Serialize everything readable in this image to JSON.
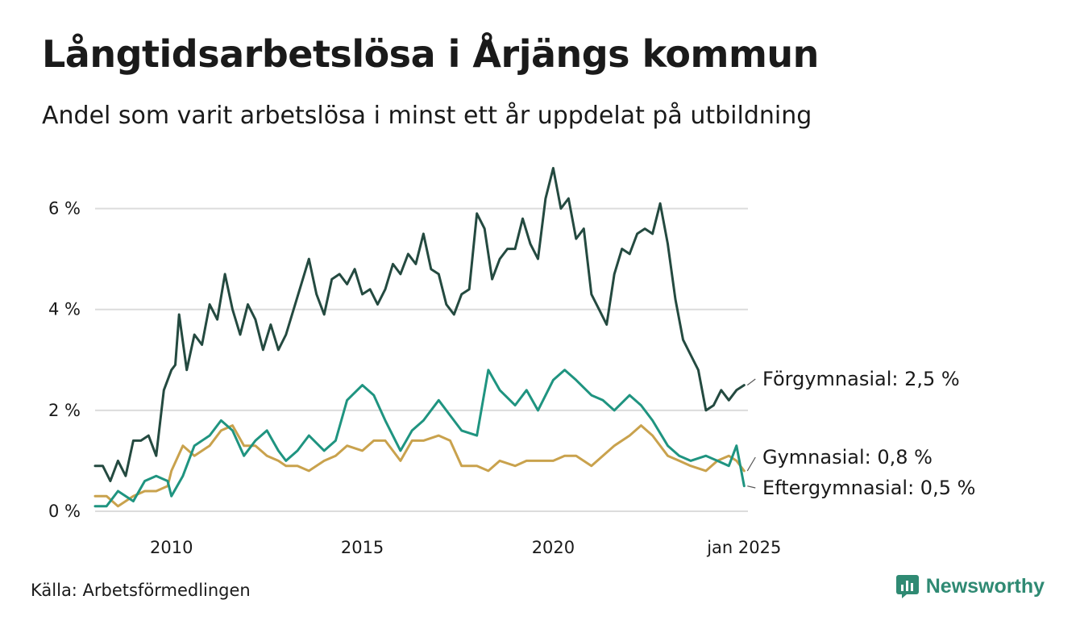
{
  "chart_data": {
    "type": "line",
    "title": "Långtidsarbetslösa i Årjängs kommun",
    "subtitle": "Andel som varit arbetslösa i minst ett år uppdelat på utbildning",
    "ylim": [
      0,
      7
    ],
    "xlim": [
      2008,
      2025.1
    ],
    "yticks": [
      0,
      2,
      4,
      6
    ],
    "ytick_labels": [
      "0 %",
      "2 %",
      "4 %",
      "6 %"
    ],
    "xticks": [
      2010,
      2015,
      2020,
      2025
    ],
    "xtick_labels": [
      "2010",
      "2015",
      "2020",
      "jan 2025"
    ],
    "grid": true,
    "series": [
      {
        "name": "Förgymnasial",
        "label": "Förgymnasial: 2,5 %",
        "color": "#244a40",
        "x": [
          2008.0,
          2008.2,
          2008.4,
          2008.6,
          2008.8,
          2009.0,
          2009.2,
          2009.4,
          2009.6,
          2009.8,
          2010.0,
          2010.1,
          2010.2,
          2010.4,
          2010.6,
          2010.8,
          2011.0,
          2011.2,
          2011.4,
          2011.6,
          2011.8,
          2012.0,
          2012.2,
          2012.4,
          2012.6,
          2012.8,
          2013.0,
          2013.2,
          2013.4,
          2013.6,
          2013.8,
          2014.0,
          2014.2,
          2014.4,
          2014.6,
          2014.8,
          2015.0,
          2015.2,
          2015.4,
          2015.6,
          2015.8,
          2016.0,
          2016.2,
          2016.4,
          2016.6,
          2016.8,
          2017.0,
          2017.2,
          2017.4,
          2017.6,
          2017.8,
          2018.0,
          2018.2,
          2018.4,
          2018.6,
          2018.8,
          2019.0,
          2019.2,
          2019.4,
          2019.6,
          2019.8,
          2020.0,
          2020.2,
          2020.4,
          2020.6,
          2020.8,
          2021.0,
          2021.2,
          2021.4,
          2021.6,
          2021.8,
          2022.0,
          2022.2,
          2022.4,
          2022.6,
          2022.8,
          2023.0,
          2023.2,
          2023.4,
          2023.6,
          2023.8,
          2024.0,
          2024.2,
          2024.4,
          2024.6,
          2024.8,
          2025.0
        ],
        "y": [
          0.9,
          0.9,
          0.6,
          1.0,
          0.7,
          1.4,
          1.4,
          1.5,
          1.1,
          2.4,
          2.8,
          2.9,
          3.9,
          2.8,
          3.5,
          3.3,
          4.1,
          3.8,
          4.7,
          4.0,
          3.5,
          4.1,
          3.8,
          3.2,
          3.7,
          3.2,
          3.5,
          4.0,
          4.5,
          5.0,
          4.3,
          3.9,
          4.6,
          4.7,
          4.5,
          4.8,
          4.3,
          4.4,
          4.1,
          4.4,
          4.9,
          4.7,
          5.1,
          4.9,
          5.5,
          4.8,
          4.7,
          4.1,
          3.9,
          4.3,
          4.4,
          5.9,
          5.6,
          4.6,
          5.0,
          5.2,
          5.2,
          5.8,
          5.3,
          5.0,
          6.2,
          6.8,
          6.0,
          6.2,
          5.4,
          5.6,
          4.3,
          4.0,
          3.7,
          4.7,
          5.2,
          5.1,
          5.5,
          5.6,
          5.5,
          6.1,
          5.3,
          4.2,
          3.4,
          3.1,
          2.8,
          2.0,
          2.1,
          2.4,
          2.2,
          2.4,
          2.5
        ]
      },
      {
        "name": "Gymnasial",
        "label": "Gymnasial: 0,8 %",
        "color": "#c9a24d",
        "x": [
          2008.0,
          2008.3,
          2008.6,
          2009.0,
          2009.3,
          2009.6,
          2009.9,
          2010.0,
          2010.3,
          2010.6,
          2011.0,
          2011.3,
          2011.6,
          2011.9,
          2012.2,
          2012.5,
          2012.8,
          2013.0,
          2013.3,
          2013.6,
          2014.0,
          2014.3,
          2014.6,
          2015.0,
          2015.3,
          2015.6,
          2016.0,
          2016.3,
          2016.6,
          2017.0,
          2017.3,
          2017.6,
          2018.0,
          2018.3,
          2018.6,
          2019.0,
          2019.3,
          2019.6,
          2020.0,
          2020.3,
          2020.6,
          2021.0,
          2021.3,
          2021.6,
          2022.0,
          2022.3,
          2022.6,
          2023.0,
          2023.3,
          2023.6,
          2024.0,
          2024.3,
          2024.6,
          2024.8,
          2025.0
        ],
        "y": [
          0.3,
          0.3,
          0.1,
          0.3,
          0.4,
          0.4,
          0.5,
          0.8,
          1.3,
          1.1,
          1.3,
          1.6,
          1.7,
          1.3,
          1.3,
          1.1,
          1.0,
          0.9,
          0.9,
          0.8,
          1.0,
          1.1,
          1.3,
          1.2,
          1.4,
          1.4,
          1.0,
          1.4,
          1.4,
          1.5,
          1.4,
          0.9,
          0.9,
          0.8,
          1.0,
          0.9,
          1.0,
          1.0,
          1.0,
          1.1,
          1.1,
          0.9,
          1.1,
          1.3,
          1.5,
          1.7,
          1.5,
          1.1,
          1.0,
          0.9,
          0.8,
          1.0,
          1.1,
          1.0,
          0.8
        ]
      },
      {
        "name": "Eftergymnasial",
        "label": "Eftergymnasial: 0,5 %",
        "color": "#1f9480",
        "x": [
          2008.0,
          2008.3,
          2008.6,
          2009.0,
          2009.3,
          2009.6,
          2009.9,
          2010.0,
          2010.3,
          2010.6,
          2011.0,
          2011.3,
          2011.6,
          2011.9,
          2012.2,
          2012.5,
          2012.8,
          2013.0,
          2013.3,
          2013.6,
          2014.0,
          2014.3,
          2014.6,
          2015.0,
          2015.3,
          2015.6,
          2016.0,
          2016.3,
          2016.6,
          2017.0,
          2017.3,
          2017.6,
          2018.0,
          2018.3,
          2018.6,
          2019.0,
          2019.3,
          2019.6,
          2020.0,
          2020.3,
          2020.6,
          2021.0,
          2021.3,
          2021.6,
          2022.0,
          2022.3,
          2022.6,
          2023.0,
          2023.3,
          2023.6,
          2024.0,
          2024.3,
          2024.6,
          2024.8,
          2025.0
        ],
        "y": [
          0.1,
          0.1,
          0.4,
          0.2,
          0.6,
          0.7,
          0.6,
          0.3,
          0.7,
          1.3,
          1.5,
          1.8,
          1.6,
          1.1,
          1.4,
          1.6,
          1.2,
          1.0,
          1.2,
          1.5,
          1.2,
          1.4,
          2.2,
          2.5,
          2.3,
          1.8,
          1.2,
          1.6,
          1.8,
          2.2,
          1.9,
          1.6,
          1.5,
          2.8,
          2.4,
          2.1,
          2.4,
          2.0,
          2.6,
          2.8,
          2.6,
          2.3,
          2.2,
          2.0,
          2.3,
          2.1,
          1.8,
          1.3,
          1.1,
          1.0,
          1.1,
          1.0,
          0.9,
          1.3,
          0.5
        ]
      }
    ]
  },
  "source": "Källa: Arbetsförmedlingen",
  "brand": {
    "name": "Newsworthy",
    "icon": "bar-chart-icon",
    "color": "#2f8a73"
  },
  "colors": {
    "grid": "#dcdcdc",
    "text": "#1a1a1a"
  }
}
